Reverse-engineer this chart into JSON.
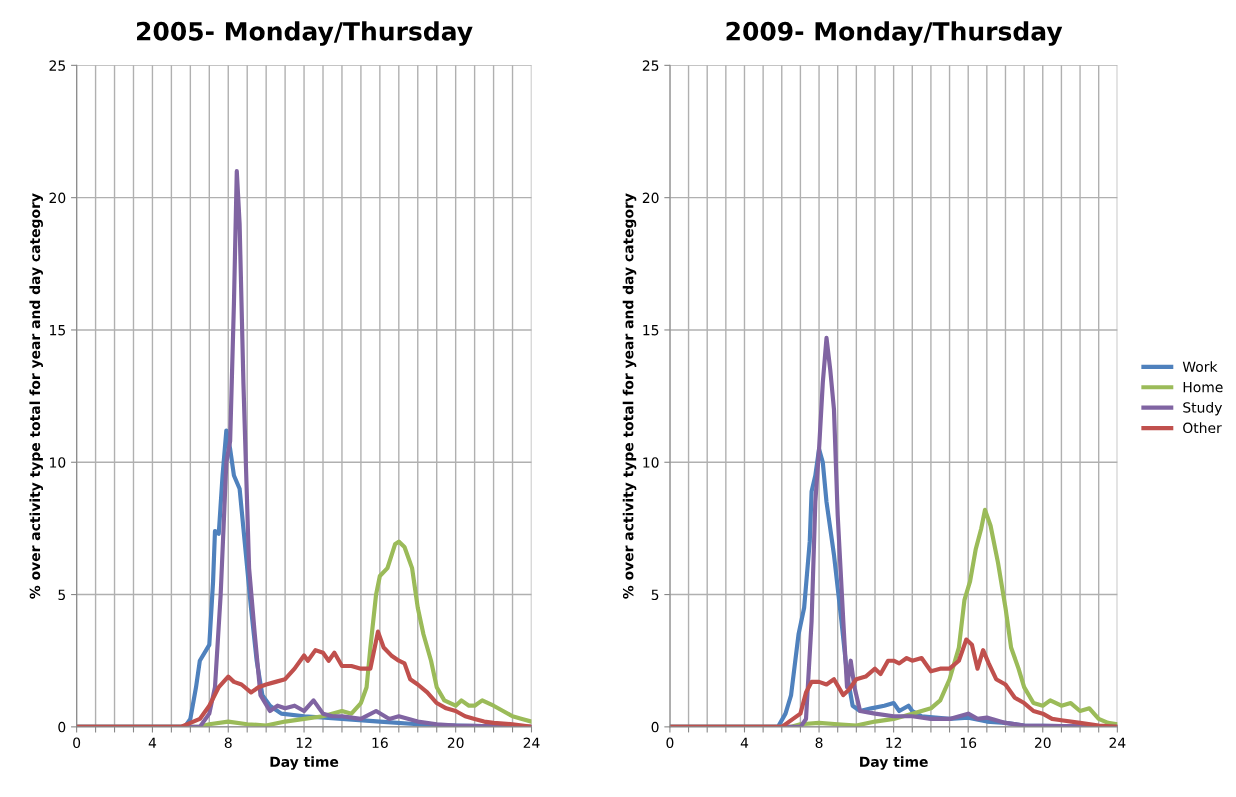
{
  "chart_data": [
    {
      "type": "line",
      "title": "2005- Monday/Thursday",
      "xlabel": "Day time",
      "ylabel": "% over activity type total for year and day category",
      "xlim": [
        0,
        24
      ],
      "ylim": [
        0,
        25
      ],
      "xticks": [
        0,
        {
          "value": 1,
          "label": null
        },
        {
          "value": 2,
          "label": null
        },
        {
          "value": 3,
          "label": null
        },
        4,
        {
          "value": 5,
          "label": null
        },
        {
          "value": 6,
          "label": null
        },
        {
          "value": 7,
          "label": null
        },
        8,
        {
          "value": 9,
          "label": null
        },
        {
          "value": 10,
          "label": null
        },
        {
          "value": 11,
          "label": null
        },
        12,
        {
          "value": 13,
          "label": null
        },
        {
          "value": 14,
          "label": null
        },
        {
          "value": 15,
          "label": null
        },
        16,
        {
          "value": 17,
          "label": null
        },
        {
          "value": 18,
          "label": null
        },
        {
          "value": 19,
          "label": null
        },
        20,
        {
          "value": 21,
          "label": null
        },
        {
          "value": 22,
          "label": null
        },
        {
          "value": 23,
          "label": null
        },
        24
      ],
      "yticks": [
        0,
        5,
        10,
        15,
        20,
        25
      ],
      "grid": true,
      "legend": "right",
      "marker": "none",
      "line_style": "solid",
      "series": [
        {
          "name": "Work",
          "color": "#4f81bd",
          "x": [
            0,
            5.7,
            6.0,
            6.3,
            6.5,
            7.0,
            7.2,
            7.3,
            7.5,
            7.7,
            7.9,
            8.1,
            8.3,
            8.6,
            8.8,
            9.2,
            9.5,
            9.8,
            10.2,
            10.8,
            12,
            14,
            16,
            18,
            20,
            24
          ],
          "values": [
            0,
            0,
            0.3,
            1.5,
            2.5,
            3.1,
            5.5,
            7.4,
            7.3,
            9.5,
            11.2,
            10.5,
            9.5,
            9,
            7.5,
            4.5,
            2.5,
            1.2,
            0.8,
            0.5,
            0.4,
            0.3,
            0.2,
            0.1,
            0.05,
            0
          ]
        },
        {
          "name": "Home",
          "color": "#9bbb59",
          "x": [
            0,
            6.5,
            7,
            8,
            9,
            10,
            11,
            12,
            13,
            14,
            14.5,
            15,
            15.3,
            15.5,
            15.8,
            16.0,
            16.4,
            16.8,
            17.0,
            17.3,
            17.7,
            18,
            18.3,
            18.7,
            19,
            19.4,
            20,
            20.3,
            20.7,
            21,
            21.4,
            22,
            22.5,
            23,
            23.5,
            24
          ],
          "values": [
            0,
            0,
            0.1,
            0.2,
            0.1,
            0.05,
            0.2,
            0.3,
            0.4,
            0.6,
            0.5,
            0.9,
            1.5,
            3,
            5,
            5.7,
            6.0,
            6.9,
            7.0,
            6.8,
            6.0,
            4.5,
            3.5,
            2.5,
            1.5,
            1.0,
            0.8,
            1.0,
            0.8,
            0.8,
            1.0,
            0.8,
            0.6,
            0.4,
            0.3,
            0.2
          ]
        },
        {
          "name": "Study",
          "color": "#8064a2",
          "x": [
            0,
            6.5,
            7.0,
            7.3,
            7.6,
            7.9,
            8.1,
            8.3,
            8.45,
            8.6,
            8.8,
            9.1,
            9.4,
            9.7,
            10.2,
            10.6,
            11,
            11.5,
            12,
            12.5,
            13,
            13.5,
            14,
            15,
            15.8,
            16.5,
            17,
            18,
            19,
            20,
            24
          ],
          "values": [
            0,
            0,
            0.5,
            1.5,
            5,
            10,
            10.8,
            16,
            21,
            19,
            13,
            6,
            3.5,
            1.2,
            0.6,
            0.8,
            0.7,
            0.8,
            0.6,
            1.0,
            0.5,
            0.4,
            0.4,
            0.3,
            0.6,
            0.3,
            0.4,
            0.2,
            0.1,
            0.05,
            0
          ]
        },
        {
          "name": "Other",
          "color": "#c0504d",
          "x": [
            0,
            5.5,
            6.5,
            7,
            7.5,
            8,
            8.3,
            8.7,
            9.2,
            9.6,
            10,
            10.5,
            11,
            11.5,
            12,
            12.2,
            12.6,
            13,
            13.3,
            13.6,
            14,
            14.5,
            15,
            15.5,
            15.9,
            16.2,
            16.6,
            17,
            17.3,
            17.6,
            18,
            18.5,
            19,
            19.5,
            20,
            20.5,
            21,
            21.5,
            22,
            23,
            24
          ],
          "values": [
            0,
            0,
            0.3,
            0.8,
            1.5,
            1.9,
            1.7,
            1.6,
            1.3,
            1.5,
            1.6,
            1.7,
            1.8,
            2.2,
            2.7,
            2.5,
            2.9,
            2.8,
            2.5,
            2.8,
            2.3,
            2.3,
            2.2,
            2.2,
            3.6,
            3.0,
            2.7,
            2.5,
            2.4,
            1.8,
            1.6,
            1.3,
            0.9,
            0.7,
            0.6,
            0.4,
            0.3,
            0.2,
            0.15,
            0.1,
            0
          ]
        }
      ]
    },
    {
      "type": "line",
      "title": "2009- Monday/Thursday",
      "xlabel": "Day time",
      "ylabel": "% over activity type total for year and day category",
      "xlim": [
        0,
        24
      ],
      "ylim": [
        0,
        25
      ],
      "xticks": [
        0,
        {
          "value": 1,
          "label": null
        },
        {
          "value": 2,
          "label": null
        },
        {
          "value": 3,
          "label": null
        },
        4,
        {
          "value": 5,
          "label": null
        },
        {
          "value": 6,
          "label": null
        },
        {
          "value": 7,
          "label": null
        },
        8,
        {
          "value": 9,
          "label": null
        },
        {
          "value": 10,
          "label": null
        },
        {
          "value": 11,
          "label": null
        },
        12,
        {
          "value": 13,
          "label": null
        },
        {
          "value": 14,
          "label": null
        },
        {
          "value": 15,
          "label": null
        },
        16,
        {
          "value": 17,
          "label": null
        },
        {
          "value": 18,
          "label": null
        },
        {
          "value": 19,
          "label": null
        },
        20,
        {
          "value": 21,
          "label": null
        },
        {
          "value": 22,
          "label": null
        },
        {
          "value": 23,
          "label": null
        },
        24
      ],
      "yticks": [
        0,
        5,
        10,
        15,
        20,
        25
      ],
      "grid": true,
      "marker": "none",
      "line_style": "solid",
      "series": [
        {
          "color": "#4f81bd",
          "x": [
            0,
            5.8,
            6.2,
            6.5,
            6.9,
            7.2,
            7.5,
            7.6,
            7.8,
            8.0,
            8.2,
            8.4,
            8.8,
            9.2,
            9.5,
            9.8,
            10.2,
            10.8,
            11.5,
            12,
            12.3,
            12.8,
            13,
            13.5,
            15,
            16,
            17,
            18,
            19,
            24
          ],
          "values": [
            0,
            0,
            0.5,
            1.2,
            3.5,
            4.5,
            7,
            8.9,
            9.5,
            10.5,
            10.0,
            8.5,
            6.5,
            4,
            2.0,
            0.8,
            0.6,
            0.7,
            0.8,
            0.9,
            0.6,
            0.8,
            0.6,
            0.4,
            0.3,
            0.35,
            0.2,
            0.15,
            0.05,
            0
          ]
        },
        {
          "color": "#9bbb59",
          "x": [
            0,
            6.5,
            7,
            8,
            9,
            10,
            11,
            12,
            13,
            14,
            14.5,
            15,
            15.5,
            15.8,
            16.1,
            16.4,
            16.7,
            16.9,
            17.2,
            17.6,
            18,
            18.3,
            18.7,
            19,
            19.5,
            20,
            20.4,
            21,
            21.5,
            22,
            22.5,
            23,
            23.5,
            24
          ],
          "values": [
            0,
            0,
            0.1,
            0.15,
            0.1,
            0.05,
            0.2,
            0.3,
            0.5,
            0.7,
            1.0,
            1.8,
            3,
            4.8,
            5.5,
            6.7,
            7.5,
            8.2,
            7.6,
            6.2,
            4.5,
            3,
            2.2,
            1.5,
            0.9,
            0.8,
            1.0,
            0.8,
            0.9,
            0.6,
            0.7,
            0.3,
            0.15,
            0.1
          ]
        },
        {
          "color": "#8064a2",
          "x": [
            0,
            7,
            7.3,
            7.6,
            7.8,
            8.0,
            8.2,
            8.4,
            8.6,
            8.8,
            9.0,
            9.3,
            9.5,
            9.7,
            9.9,
            10.2,
            11,
            12,
            13,
            14,
            15,
            16,
            16.5,
            17,
            18,
            19,
            24
          ],
          "values": [
            0,
            0,
            0.3,
            4,
            8.5,
            10.5,
            13,
            14.7,
            13.5,
            12,
            8,
            4,
            1.5,
            2.5,
            1.5,
            0.6,
            0.5,
            0.4,
            0.4,
            0.3,
            0.3,
            0.5,
            0.3,
            0.35,
            0.15,
            0.05,
            0
          ]
        },
        {
          "color": "#c0504d",
          "x": [
            0,
            6,
            7,
            7.3,
            7.6,
            8,
            8.4,
            8.8,
            9.3,
            9.6,
            10,
            10.5,
            11,
            11.3,
            11.7,
            12,
            12.3,
            12.7,
            13,
            13.5,
            14,
            14.5,
            15,
            15.5,
            15.9,
            16.2,
            16.5,
            16.8,
            17.1,
            17.5,
            18,
            18.5,
            19,
            19.5,
            20,
            20.5,
            21,
            22,
            23,
            24
          ],
          "values": [
            0,
            0,
            0.5,
            1.3,
            1.7,
            1.7,
            1.6,
            1.8,
            1.2,
            1.4,
            1.8,
            1.9,
            2.2,
            2.0,
            2.5,
            2.5,
            2.4,
            2.6,
            2.5,
            2.6,
            2.1,
            2.2,
            2.2,
            2.5,
            3.3,
            3.1,
            2.2,
            2.9,
            2.4,
            1.8,
            1.6,
            1.1,
            0.9,
            0.6,
            0.5,
            0.3,
            0.25,
            0.15,
            0.05,
            0
          ]
        }
      ]
    }
  ]
}
